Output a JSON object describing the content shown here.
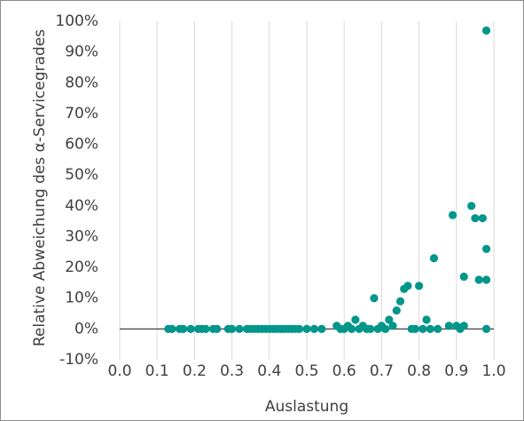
{
  "chart_data": {
    "type": "scatter",
    "xlabel": "Auslastung",
    "ylabel": "Relative Abweichung des α-Servicegrades",
    "xlim": [
      0,
      1
    ],
    "ylim": [
      -10,
      100
    ],
    "xticks": [
      "0.0",
      "0.1",
      "0.2",
      "0.3",
      "0.4",
      "0.5",
      "0.6",
      "0.7",
      "0.8",
      "0.9",
      "1.0"
    ],
    "xtick_values": [
      0,
      0.1,
      0.2,
      0.3,
      0.4,
      0.5,
      0.6,
      0.7,
      0.8,
      0.9,
      1.0
    ],
    "yticks": [
      "-10%",
      "0%",
      "10%",
      "20%",
      "30%",
      "40%",
      "50%",
      "60%",
      "70%",
      "80%",
      "90%",
      "100%"
    ],
    "ytick_values": [
      -10,
      0,
      10,
      20,
      30,
      40,
      50,
      60,
      70,
      80,
      90,
      100
    ],
    "grid": "vertical",
    "legend": "none",
    "marker_color": "#00968a",
    "points": [
      [
        0.13,
        0
      ],
      [
        0.14,
        0
      ],
      [
        0.16,
        0
      ],
      [
        0.17,
        0
      ],
      [
        0.19,
        0
      ],
      [
        0.21,
        0
      ],
      [
        0.22,
        0
      ],
      [
        0.23,
        0
      ],
      [
        0.25,
        0
      ],
      [
        0.26,
        0
      ],
      [
        0.29,
        0
      ],
      [
        0.3,
        0
      ],
      [
        0.32,
        0
      ],
      [
        0.34,
        0
      ],
      [
        0.35,
        0
      ],
      [
        0.36,
        0
      ],
      [
        0.37,
        0
      ],
      [
        0.38,
        0
      ],
      [
        0.39,
        0
      ],
      [
        0.4,
        0
      ],
      [
        0.41,
        0
      ],
      [
        0.42,
        0
      ],
      [
        0.43,
        0
      ],
      [
        0.44,
        0
      ],
      [
        0.45,
        0
      ],
      [
        0.46,
        0
      ],
      [
        0.47,
        0
      ],
      [
        0.48,
        0
      ],
      [
        0.5,
        0
      ],
      [
        0.52,
        0
      ],
      [
        0.54,
        0
      ],
      [
        0.58,
        1
      ],
      [
        0.59,
        0
      ],
      [
        0.6,
        0
      ],
      [
        0.61,
        1
      ],
      [
        0.62,
        0
      ],
      [
        0.63,
        3
      ],
      [
        0.64,
        0
      ],
      [
        0.65,
        1
      ],
      [
        0.66,
        0
      ],
      [
        0.67,
        0
      ],
      [
        0.68,
        10
      ],
      [
        0.69,
        0
      ],
      [
        0.7,
        1
      ],
      [
        0.71,
        0
      ],
      [
        0.72,
        3
      ],
      [
        0.73,
        1
      ],
      [
        0.74,
        6
      ],
      [
        0.75,
        9
      ],
      [
        0.76,
        13
      ],
      [
        0.77,
        14
      ],
      [
        0.78,
        0
      ],
      [
        0.79,
        0
      ],
      [
        0.8,
        14
      ],
      [
        0.81,
        0
      ],
      [
        0.82,
        3
      ],
      [
        0.83,
        0
      ],
      [
        0.84,
        23
      ],
      [
        0.85,
        0
      ],
      [
        0.88,
        1
      ],
      [
        0.89,
        37
      ],
      [
        0.9,
        1
      ],
      [
        0.91,
        0
      ],
      [
        0.92,
        17
      ],
      [
        0.92,
        1
      ],
      [
        0.94,
        40
      ],
      [
        0.95,
        36
      ],
      [
        0.96,
        16
      ],
      [
        0.97,
        36
      ],
      [
        0.98,
        26
      ],
      [
        0.98,
        16
      ],
      [
        0.98,
        0
      ],
      [
        0.98,
        97
      ]
    ]
  }
}
